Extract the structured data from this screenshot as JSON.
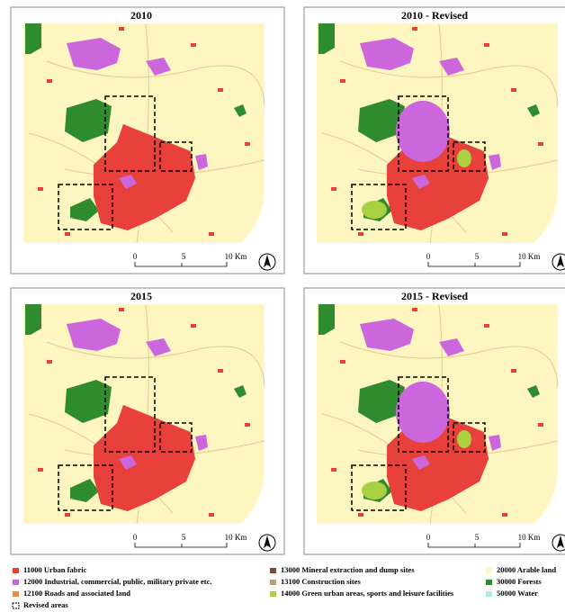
{
  "panels": [
    {
      "title": "2010",
      "revised": false
    },
    {
      "title": "2010 - Revised",
      "revised": true
    },
    {
      "title": "2015",
      "revised": false
    },
    {
      "title": "2015 - Revised",
      "revised": true
    }
  ],
  "scale_bar": {
    "labels": [
      "0",
      "5",
      "10 Km"
    ]
  },
  "legend": {
    "items": [
      {
        "label": "11000 Urban fabric",
        "color": "#e8403a"
      },
      {
        "label": "12000 Industrial, commercial, public, military private etc.",
        "color": "#cc66dd"
      },
      {
        "label": "12100 Roads and associated land",
        "color": "#f08a3a"
      },
      {
        "label": "13000 Mineral extraction and dump sites",
        "color": "#7a4a3a"
      },
      {
        "label": "13100 Construction sites",
        "color": "#b8a27a"
      },
      {
        "label": "14000 Green urban areas, sports and leisure facilities",
        "color": "#a8d040"
      },
      {
        "label": "20000 Arable land",
        "color": "#fdf6c0"
      },
      {
        "label": "30000 Forests",
        "color": "#2e8b2e"
      },
      {
        "label": "50000 Water",
        "color": "#a8ecec"
      }
    ],
    "revised_label": "Revised areas"
  }
}
